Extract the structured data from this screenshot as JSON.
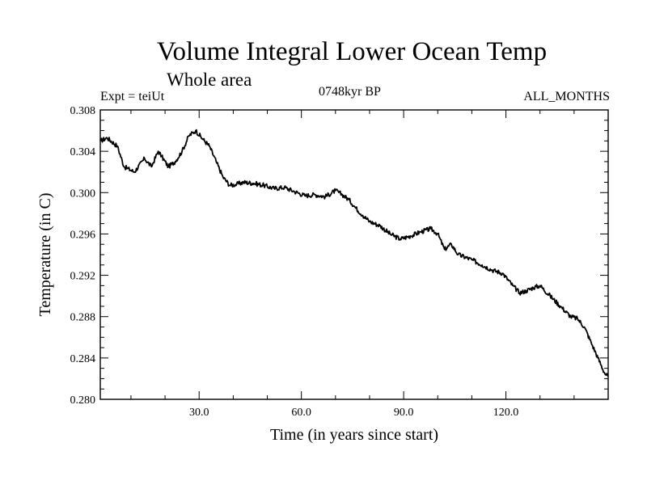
{
  "chart_data": {
    "type": "line",
    "title": "Volume Integral Lower Ocean Temp",
    "subtitle": "Whole area",
    "experiment_label": "Expt = teiUt",
    "period_label": "0748kyr BP",
    "months_label": "ALL_MONTHS",
    "xlabel": "Time (in years since start)",
    "ylabel": "Temperature (in C)",
    "xlim": [
      1,
      150
    ],
    "ylim": [
      0.28,
      0.308
    ],
    "xticks": [
      30,
      60,
      90,
      120
    ],
    "xtick_labels": [
      "30.0",
      "60.0",
      "90.0",
      "120.0"
    ],
    "yticks": [
      0.28,
      0.284,
      0.288,
      0.292,
      0.296,
      0.3,
      0.304,
      0.308
    ],
    "ytick_labels": [
      "0.280",
      "0.284",
      "0.288",
      "0.292",
      "0.296",
      "0.300",
      "0.304",
      "0.308"
    ],
    "grid": false,
    "series": [
      {
        "name": "Volume Integral Lower Ocean Temp",
        "color": "#000000",
        "x": [
          1,
          3,
          6,
          8,
          11,
          14,
          16,
          18,
          19,
          21,
          23,
          25,
          27,
          29,
          31,
          33,
          35,
          37,
          39,
          41,
          43,
          46,
          49,
          52,
          55,
          58,
          61,
          64,
          67,
          70,
          72,
          74,
          76,
          78,
          80,
          83,
          86,
          89,
          92,
          95,
          98,
          100,
          102,
          104,
          106,
          110,
          113,
          116,
          119,
          122,
          124,
          126,
          128,
          130,
          133,
          136,
          139,
          141,
          143,
          145,
          147,
          149,
          150
        ],
        "y": [
          0.305,
          0.3053,
          0.3045,
          0.3025,
          0.302,
          0.3033,
          0.3025,
          0.304,
          0.3035,
          0.3025,
          0.303,
          0.304,
          0.3055,
          0.306,
          0.3052,
          0.3045,
          0.303,
          0.3015,
          0.3007,
          0.3008,
          0.301,
          0.3009,
          0.3007,
          0.3004,
          0.3005,
          0.3001,
          0.2997,
          0.2998,
          0.2996,
          0.3002,
          0.2998,
          0.2993,
          0.2985,
          0.2978,
          0.2972,
          0.2968,
          0.296,
          0.2955,
          0.2958,
          0.2962,
          0.2965,
          0.296,
          0.2945,
          0.295,
          0.294,
          0.2935,
          0.293,
          0.2925,
          0.2922,
          0.291,
          0.2903,
          0.2905,
          0.2908,
          0.291,
          0.29,
          0.289,
          0.288,
          0.2878,
          0.287,
          0.2855,
          0.284,
          0.2825,
          0.2822
        ]
      }
    ]
  }
}
